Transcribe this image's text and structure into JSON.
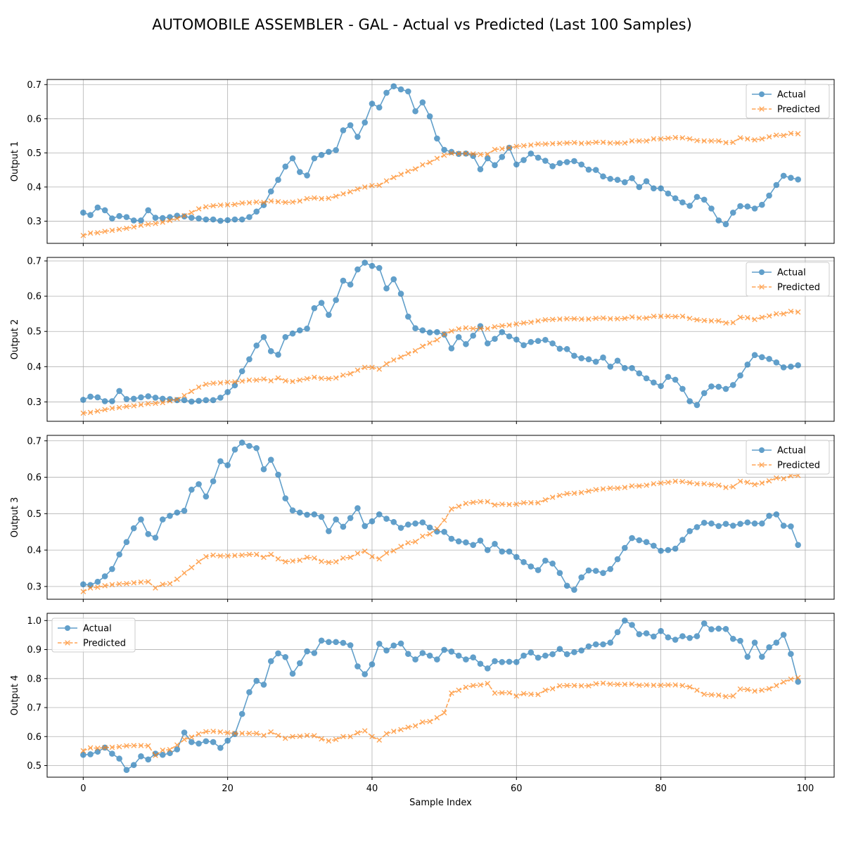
{
  "title": "AUTOMOBILE ASSEMBLER - GAL - Actual vs Predicted (Last 100 Samples)",
  "colors": {
    "actual": "#1f77b4",
    "predicted": "#ff7f0e"
  },
  "chart_data": [
    {
      "type": "line",
      "ylabel": "Output 1",
      "xlabel": "",
      "xlim": [
        -5,
        104
      ],
      "ylim": [
        0.235,
        0.715
      ],
      "xticks": [
        0,
        20,
        40,
        60,
        80,
        100
      ],
      "xtick_labels": [],
      "yticks": [
        0.3,
        0.4,
        0.5,
        0.6,
        0.7
      ],
      "ytick_labels": [
        "0.3",
        "0.4",
        "0.5",
        "0.6",
        "0.7"
      ],
      "grid": true,
      "legend": "upper-right",
      "series": [
        {
          "name": "Actual",
          "marker": "circle",
          "style": "solid",
          "values": [
            0.325,
            0.318,
            0.34,
            0.332,
            0.308,
            0.315,
            0.312,
            0.302,
            0.302,
            0.332,
            0.31,
            0.309,
            0.312,
            0.316,
            0.314,
            0.31,
            0.308,
            0.305,
            0.305,
            0.301,
            0.303,
            0.305,
            0.305,
            0.312,
            0.328,
            0.347,
            0.387,
            0.421,
            0.46,
            0.484,
            0.444,
            0.434,
            0.484,
            0.494,
            0.503,
            0.508,
            0.566,
            0.581,
            0.547,
            0.589,
            0.644,
            0.633,
            0.676,
            0.695,
            0.686,
            0.68,
            0.622,
            0.648,
            0.607,
            0.542,
            0.509,
            0.503,
            0.497,
            0.498,
            0.491,
            0.452,
            0.484,
            0.464,
            0.488,
            0.515,
            0.466,
            0.479,
            0.498,
            0.486,
            0.477,
            0.461,
            0.47,
            0.473,
            0.476,
            0.466,
            0.451,
            0.45,
            0.431,
            0.424,
            0.421,
            0.414,
            0.426,
            0.4,
            0.417,
            0.396,
            0.396,
            0.381,
            0.367,
            0.355,
            0.345,
            0.371,
            0.363,
            0.337,
            0.302,
            0.291,
            0.325,
            0.344,
            0.343,
            0.337,
            0.348,
            0.375,
            0.406,
            0.433,
            0.427,
            0.422
          ]
        },
        {
          "name": "Predicted",
          "marker": "x",
          "style": "dashed",
          "values": [
            0.258,
            0.265,
            0.266,
            0.27,
            0.273,
            0.276,
            0.279,
            0.283,
            0.288,
            0.291,
            0.293,
            0.297,
            0.302,
            0.308,
            0.316,
            0.325,
            0.336,
            0.342,
            0.345,
            0.347,
            0.348,
            0.349,
            0.353,
            0.354,
            0.356,
            0.355,
            0.359,
            0.357,
            0.355,
            0.356,
            0.359,
            0.366,
            0.368,
            0.366,
            0.367,
            0.373,
            0.38,
            0.386,
            0.394,
            0.4,
            0.404,
            0.405,
            0.418,
            0.428,
            0.437,
            0.446,
            0.453,
            0.465,
            0.472,
            0.484,
            0.493,
            0.499,
            0.498,
            0.498,
            0.497,
            0.495,
            0.496,
            0.51,
            0.512,
            0.515,
            0.519,
            0.521,
            0.523,
            0.526,
            0.526,
            0.527,
            0.528,
            0.529,
            0.53,
            0.528,
            0.529,
            0.531,
            0.531,
            0.529,
            0.529,
            0.529,
            0.535,
            0.535,
            0.535,
            0.541,
            0.541,
            0.543,
            0.545,
            0.544,
            0.541,
            0.536,
            0.535,
            0.535,
            0.535,
            0.53,
            0.531,
            0.544,
            0.541,
            0.538,
            0.541,
            0.547,
            0.552,
            0.551,
            0.557,
            0.556
          ]
        }
      ]
    },
    {
      "type": "line",
      "ylabel": "Output 2",
      "xlabel": "",
      "xlim": [
        -5,
        104
      ],
      "ylim": [
        0.245,
        0.71
      ],
      "xticks": [
        0,
        20,
        40,
        60,
        80,
        100
      ],
      "xtick_labels": [],
      "yticks": [
        0.3,
        0.4,
        0.5,
        0.6,
        0.7
      ],
      "ytick_labels": [
        "0.3",
        "0.4",
        "0.5",
        "0.6",
        "0.7"
      ],
      "grid": true,
      "legend": "upper-right",
      "series": [
        {
          "name": "Actual",
          "marker": "circle",
          "style": "solid",
          "values": [
            0.306,
            0.315,
            0.313,
            0.302,
            0.302,
            0.331,
            0.308,
            0.309,
            0.313,
            0.316,
            0.312,
            0.309,
            0.308,
            0.305,
            0.305,
            0.301,
            0.303,
            0.305,
            0.305,
            0.312,
            0.328,
            0.347,
            0.387,
            0.421,
            0.46,
            0.484,
            0.444,
            0.434,
            0.484,
            0.494,
            0.503,
            0.508,
            0.566,
            0.581,
            0.547,
            0.589,
            0.644,
            0.633,
            0.676,
            0.695,
            0.686,
            0.68,
            0.622,
            0.648,
            0.607,
            0.542,
            0.509,
            0.503,
            0.497,
            0.498,
            0.491,
            0.452,
            0.484,
            0.464,
            0.488,
            0.515,
            0.466,
            0.479,
            0.498,
            0.486,
            0.477,
            0.461,
            0.47,
            0.473,
            0.476,
            0.466,
            0.451,
            0.45,
            0.431,
            0.424,
            0.421,
            0.414,
            0.426,
            0.4,
            0.417,
            0.396,
            0.396,
            0.381,
            0.367,
            0.355,
            0.345,
            0.371,
            0.363,
            0.337,
            0.302,
            0.291,
            0.325,
            0.344,
            0.343,
            0.337,
            0.348,
            0.375,
            0.406,
            0.433,
            0.427,
            0.422,
            0.412,
            0.398,
            0.4,
            0.404
          ]
        },
        {
          "name": "Predicted",
          "marker": "x",
          "style": "dashed",
          "values": [
            0.268,
            0.27,
            0.274,
            0.278,
            0.282,
            0.284,
            0.287,
            0.289,
            0.292,
            0.295,
            0.296,
            0.298,
            0.303,
            0.307,
            0.318,
            0.33,
            0.342,
            0.35,
            0.353,
            0.354,
            0.356,
            0.357,
            0.359,
            0.362,
            0.362,
            0.365,
            0.36,
            0.368,
            0.36,
            0.358,
            0.362,
            0.366,
            0.37,
            0.367,
            0.366,
            0.368,
            0.376,
            0.38,
            0.39,
            0.398,
            0.398,
            0.393,
            0.408,
            0.419,
            0.427,
            0.437,
            0.445,
            0.458,
            0.467,
            0.476,
            0.492,
            0.501,
            0.507,
            0.51,
            0.508,
            0.508,
            0.508,
            0.513,
            0.516,
            0.518,
            0.521,
            0.524,
            0.526,
            0.53,
            0.533,
            0.534,
            0.535,
            0.536,
            0.536,
            0.535,
            0.535,
            0.537,
            0.538,
            0.536,
            0.536,
            0.537,
            0.541,
            0.538,
            0.538,
            0.543,
            0.543,
            0.543,
            0.542,
            0.543,
            0.537,
            0.533,
            0.531,
            0.53,
            0.53,
            0.524,
            0.525,
            0.54,
            0.539,
            0.534,
            0.54,
            0.544,
            0.55,
            0.55,
            0.557,
            0.555
          ]
        }
      ]
    },
    {
      "type": "line",
      "ylabel": "Output 3",
      "xlabel": "",
      "xlim": [
        -5,
        104
      ],
      "ylim": [
        0.265,
        0.715
      ],
      "xticks": [
        0,
        20,
        40,
        60,
        80,
        100
      ],
      "xtick_labels": [],
      "yticks": [
        0.3,
        0.4,
        0.5,
        0.6,
        0.7
      ],
      "ytick_labels": [
        "0.3",
        "0.4",
        "0.5",
        "0.6",
        "0.7"
      ],
      "grid": true,
      "legend": "upper-right",
      "series": [
        {
          "name": "Actual",
          "marker": "circle",
          "style": "solid",
          "values": [
            0.306,
            0.304,
            0.313,
            0.328,
            0.348,
            0.388,
            0.422,
            0.46,
            0.484,
            0.444,
            0.434,
            0.484,
            0.494,
            0.503,
            0.508,
            0.566,
            0.581,
            0.547,
            0.589,
            0.644,
            0.633,
            0.676,
            0.695,
            0.686,
            0.68,
            0.622,
            0.648,
            0.607,
            0.542,
            0.509,
            0.503,
            0.497,
            0.498,
            0.491,
            0.452,
            0.484,
            0.464,
            0.488,
            0.515,
            0.466,
            0.479,
            0.498,
            0.486,
            0.477,
            0.461,
            0.47,
            0.473,
            0.476,
            0.462,
            0.451,
            0.45,
            0.431,
            0.424,
            0.421,
            0.414,
            0.426,
            0.4,
            0.417,
            0.396,
            0.396,
            0.381,
            0.367,
            0.355,
            0.345,
            0.371,
            0.363,
            0.337,
            0.302,
            0.291,
            0.325,
            0.344,
            0.343,
            0.337,
            0.348,
            0.375,
            0.406,
            0.433,
            0.427,
            0.422,
            0.412,
            0.398,
            0.4,
            0.404,
            0.428,
            0.452,
            0.463,
            0.475,
            0.473,
            0.466,
            0.472,
            0.467,
            0.472,
            0.476,
            0.473,
            0.473,
            0.494,
            0.498,
            0.467,
            0.465,
            0.414
          ]
        },
        {
          "name": "Predicted",
          "marker": "x",
          "style": "dashed",
          "values": [
            0.286,
            0.296,
            0.298,
            0.302,
            0.305,
            0.307,
            0.308,
            0.31,
            0.312,
            0.313,
            0.296,
            0.306,
            0.308,
            0.32,
            0.337,
            0.352,
            0.368,
            0.382,
            0.386,
            0.384,
            0.384,
            0.385,
            0.386,
            0.388,
            0.388,
            0.38,
            0.388,
            0.376,
            0.368,
            0.37,
            0.372,
            0.38,
            0.378,
            0.369,
            0.366,
            0.368,
            0.378,
            0.38,
            0.391,
            0.397,
            0.382,
            0.376,
            0.392,
            0.398,
            0.41,
            0.42,
            0.423,
            0.438,
            0.444,
            0.459,
            0.482,
            0.513,
            0.52,
            0.528,
            0.531,
            0.533,
            0.533,
            0.524,
            0.526,
            0.525,
            0.526,
            0.53,
            0.53,
            0.53,
            0.538,
            0.545,
            0.55,
            0.555,
            0.556,
            0.558,
            0.562,
            0.566,
            0.568,
            0.57,
            0.57,
            0.572,
            0.576,
            0.576,
            0.578,
            0.582,
            0.584,
            0.586,
            0.589,
            0.588,
            0.585,
            0.582,
            0.582,
            0.58,
            0.578,
            0.572,
            0.574,
            0.589,
            0.586,
            0.58,
            0.584,
            0.59,
            0.598,
            0.596,
            0.604,
            0.605
          ]
        }
      ]
    },
    {
      "type": "line",
      "ylabel": "Output 4",
      "xlabel": "Sample Index",
      "xlim": [
        -5,
        104
      ],
      "ylim": [
        0.46,
        1.025
      ],
      "xticks": [
        0,
        20,
        40,
        60,
        80,
        100
      ],
      "xtick_labels": [
        "0",
        "20",
        "40",
        "60",
        "80",
        "100"
      ],
      "yticks": [
        0.5,
        0.6,
        0.7,
        0.8,
        0.9,
        1.0
      ],
      "ytick_labels": [
        "0.5",
        "0.6",
        "0.7",
        "0.8",
        "0.9",
        "1.0"
      ],
      "grid": true,
      "legend": "upper-left",
      "series": [
        {
          "name": "Actual",
          "marker": "circle",
          "style": "solid",
          "values": [
            0.537,
            0.539,
            0.548,
            0.562,
            0.541,
            0.524,
            0.485,
            0.502,
            0.532,
            0.521,
            0.541,
            0.537,
            0.543,
            0.556,
            0.614,
            0.581,
            0.576,
            0.584,
            0.581,
            0.561,
            0.586,
            0.609,
            0.678,
            0.753,
            0.792,
            0.779,
            0.86,
            0.887,
            0.874,
            0.817,
            0.853,
            0.894,
            0.888,
            0.931,
            0.926,
            0.926,
            0.923,
            0.915,
            0.842,
            0.815,
            0.849,
            0.92,
            0.897,
            0.914,
            0.921,
            0.885,
            0.866,
            0.888,
            0.879,
            0.866,
            0.899,
            0.893,
            0.879,
            0.866,
            0.873,
            0.851,
            0.835,
            0.86,
            0.857,
            0.858,
            0.857,
            0.879,
            0.89,
            0.872,
            0.879,
            0.884,
            0.902,
            0.884,
            0.891,
            0.897,
            0.911,
            0.918,
            0.918,
            0.924,
            0.96,
            1.0,
            0.985,
            0.953,
            0.956,
            0.945,
            0.964,
            0.942,
            0.934,
            0.946,
            0.94,
            0.946,
            0.99,
            0.97,
            0.972,
            0.971,
            0.937,
            0.93,
            0.875,
            0.924,
            0.875,
            0.908,
            0.924,
            0.951,
            0.885,
            0.789
          ]
        },
        {
          "name": "Predicted",
          "marker": "x",
          "style": "dashed",
          "values": [
            0.551,
            0.561,
            0.56,
            0.562,
            0.563,
            0.565,
            0.568,
            0.569,
            0.569,
            0.568,
            0.535,
            0.553,
            0.555,
            0.571,
            0.59,
            0.598,
            0.609,
            0.617,
            0.618,
            0.616,
            0.613,
            0.611,
            0.611,
            0.611,
            0.611,
            0.604,
            0.616,
            0.604,
            0.594,
            0.6,
            0.601,
            0.604,
            0.603,
            0.592,
            0.585,
            0.59,
            0.6,
            0.6,
            0.613,
            0.62,
            0.6,
            0.588,
            0.61,
            0.618,
            0.624,
            0.632,
            0.637,
            0.65,
            0.652,
            0.665,
            0.682,
            0.75,
            0.76,
            0.77,
            0.776,
            0.778,
            0.783,
            0.75,
            0.751,
            0.751,
            0.74,
            0.748,
            0.746,
            0.745,
            0.76,
            0.765,
            0.775,
            0.776,
            0.776,
            0.775,
            0.775,
            0.782,
            0.784,
            0.781,
            0.78,
            0.78,
            0.781,
            0.777,
            0.778,
            0.777,
            0.777,
            0.778,
            0.778,
            0.776,
            0.771,
            0.76,
            0.746,
            0.744,
            0.743,
            0.738,
            0.74,
            0.764,
            0.762,
            0.757,
            0.76,
            0.765,
            0.776,
            0.788,
            0.798,
            0.803
          ]
        }
      ]
    }
  ]
}
